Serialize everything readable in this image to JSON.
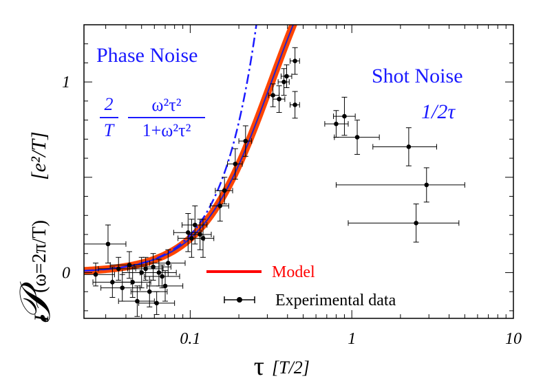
{
  "chart_data": {
    "type": "scatter",
    "title": "",
    "xlabel": {
      "main": "τ",
      "unit": "[T/2]"
    },
    "ylabel": {
      "main": "𝒫",
      "sub_I": "I",
      "sub": "(ω=2π/T)",
      "unit": "[e²/T]"
    },
    "x_scale": "log",
    "xlim": [
      0.022,
      10
    ],
    "ylim": [
      -0.24,
      1.3
    ],
    "x_ticks": [
      {
        "value": 0.1,
        "label": "0.1"
      },
      {
        "value": 1,
        "label": "1"
      },
      {
        "value": 10,
        "label": "10"
      }
    ],
    "y_ticks": [
      {
        "value": 0,
        "label": "0"
      },
      {
        "value": 1,
        "label": "1"
      }
    ],
    "grid": false,
    "legend": {
      "placement": "bottom-center",
      "entries": [
        {
          "name": "Model",
          "color": "#ff0000",
          "style": "line"
        },
        {
          "name": "Experimental data",
          "color": "#000000",
          "style": "point-errorbar"
        }
      ]
    },
    "annotations": {
      "phase_noise": {
        "title": "Phase Noise",
        "frac_num": "2",
        "frac_den": "T",
        "expr_num": "ω²τ²",
        "expr_den": "1+ω²τ²"
      },
      "shot_noise": {
        "title": "Shot Noise",
        "expr": "1/2τ"
      }
    },
    "colors": {
      "model": "#ff4500",
      "model_inner": "#2222cc",
      "asymptote": "#1a1aff",
      "data": "#000000",
      "annotation": "#1a1aff"
    },
    "series": [
      {
        "name": "Model",
        "curve": "2 x² / (1 + x²), x = 2πτ/T, T/2 = 1",
        "color": "#ff4500"
      },
      {
        "name": "Experimental data",
        "points": [
          {
            "x": 0.026,
            "y": -0.01,
            "xerr": [
              0.008,
              0.008
            ],
            "yerr": 0.06
          },
          {
            "x": 0.031,
            "y": 0.15,
            "xerr": [
              0.009,
              0.009
            ],
            "yerr": 0.1
          },
          {
            "x": 0.033,
            "y": -0.05,
            "xerr": [
              0.008,
              0.01
            ],
            "yerr": 0.08
          },
          {
            "x": 0.036,
            "y": 0.02,
            "xerr": [
              0.009,
              0.01
            ],
            "yerr": 0.06
          },
          {
            "x": 0.038,
            "y": -0.08,
            "xerr": [
              0.01,
              0.011
            ],
            "yerr": 0.07
          },
          {
            "x": 0.042,
            "y": 0.04,
            "xerr": [
              0.01,
              0.012
            ],
            "yerr": 0.07
          },
          {
            "x": 0.044,
            "y": -0.05,
            "xerr": [
              0.011,
              0.013
            ],
            "yerr": 0.08
          },
          {
            "x": 0.047,
            "y": -0.15,
            "xerr": [
              0.011,
              0.013
            ],
            "yerr": 0.08
          },
          {
            "x": 0.05,
            "y": 0.0,
            "xerr": [
              0.012,
              0.014
            ],
            "yerr": 0.08
          },
          {
            "x": 0.053,
            "y": 0.02,
            "xerr": [
              0.012,
              0.015
            ],
            "yerr": 0.06
          },
          {
            "x": 0.056,
            "y": -0.1,
            "xerr": [
              0.013,
              0.016
            ],
            "yerr": 0.08
          },
          {
            "x": 0.059,
            "y": 0.03,
            "xerr": [
              0.014,
              0.017
            ],
            "yerr": 0.07
          },
          {
            "x": 0.062,
            "y": -0.16,
            "xerr": [
              0.014,
              0.018
            ],
            "yerr": 0.06
          },
          {
            "x": 0.064,
            "y": 0.0,
            "xerr": [
              0.015,
              0.018
            ],
            "yerr": 0.07
          },
          {
            "x": 0.067,
            "y": -0.02,
            "xerr": [
              0.015,
              0.019
            ],
            "yerr": 0.06
          },
          {
            "x": 0.07,
            "y": -0.07,
            "xerr": [
              0.016,
              0.02
            ],
            "yerr": 0.08
          },
          {
            "x": 0.073,
            "y": 0.05,
            "xerr": [
              0.017,
              0.02
            ],
            "yerr": 0.07
          },
          {
            "x": 0.097,
            "y": 0.21,
            "xerr": [
              0.018,
              0.02
            ],
            "yerr": 0.1
          },
          {
            "x": 0.102,
            "y": 0.18,
            "xerr": [
              0.018,
              0.02
            ],
            "yerr": 0.1
          },
          {
            "x": 0.107,
            "y": 0.25,
            "xerr": [
              0.018,
              0.02
            ],
            "yerr": 0.1
          },
          {
            "x": 0.115,
            "y": 0.2,
            "xerr": [
              0.018,
              0.02
            ],
            "yerr": 0.08
          },
          {
            "x": 0.12,
            "y": 0.18,
            "xerr": [
              0.018,
              0.02
            ],
            "yerr": 0.1
          },
          {
            "x": 0.153,
            "y": 0.35,
            "xerr": [
              0.02,
              0.02
            ],
            "yerr": 0.08
          },
          {
            "x": 0.163,
            "y": 0.43,
            "xerr": [
              0.02,
              0.02
            ],
            "yerr": 0.07
          },
          {
            "x": 0.19,
            "y": 0.57,
            "xerr": [
              0.02,
              0.02
            ],
            "yerr": 0.08
          },
          {
            "x": 0.22,
            "y": 0.69,
            "xerr": [
              0.02,
              0.02
            ],
            "yerr": 0.08
          },
          {
            "x": 0.325,
            "y": 0.93,
            "xerr": [
              0.02,
              0.03
            ],
            "yerr": 0.06
          },
          {
            "x": 0.355,
            "y": 0.91,
            "xerr": [
              0.03,
              0.03
            ],
            "yerr": 0.07
          },
          {
            "x": 0.38,
            "y": 1.0,
            "xerr": [
              0.03,
              0.03
            ],
            "yerr": 0.07
          },
          {
            "x": 0.395,
            "y": 1.03,
            "xerr": [
              0.03,
              0.03
            ],
            "yerr": 0.06
          },
          {
            "x": 0.445,
            "y": 1.11,
            "xerr": [
              0.03,
              0.03
            ],
            "yerr": 0.07
          },
          {
            "x": 0.445,
            "y": 0.88,
            "xerr": [
              0.03,
              0.03
            ],
            "yerr": 0.07
          },
          {
            "x": 0.8,
            "y": 0.78,
            "xerr": [
              0.12,
              0.15
            ],
            "yerr": 0.07
          },
          {
            "x": 0.9,
            "y": 0.82,
            "xerr": [
              0.13,
              0.15
            ],
            "yerr": 0.1
          },
          {
            "x": 1.08,
            "y": 0.71,
            "xerr": [
              0.3,
              0.4
            ],
            "yerr": 0.09
          },
          {
            "x": 2.25,
            "y": 0.66,
            "xerr": [
              0.9,
              1.1
            ],
            "yerr": 0.1
          },
          {
            "x": 2.9,
            "y": 0.46,
            "xerr": [
              2.1,
              2.1
            ],
            "yerr": 0.09
          },
          {
            "x": 2.5,
            "y": 0.26,
            "xerr": [
              1.55,
              2.1
            ],
            "yerr": 0.1
          }
        ]
      }
    ]
  }
}
